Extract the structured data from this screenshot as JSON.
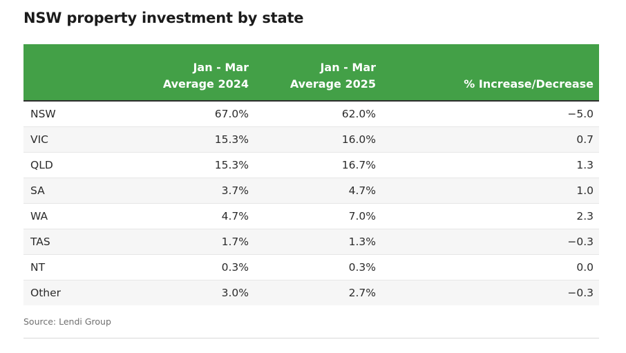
{
  "title": "NSW property investment by state",
  "source": "Source: Lendi Group",
  "chart_data": {
    "type": "table",
    "title": "NSW property investment by state",
    "columns": [
      {
        "name": "col-state",
        "lines": [
          ""
        ]
      },
      {
        "name": "col-2024",
        "lines": [
          "Jan - Mar",
          "Average 2024"
        ]
      },
      {
        "name": "col-2025",
        "lines": [
          "Jan - Mar",
          "Average 2025"
        ]
      },
      {
        "name": "col-change",
        "lines": [
          "% Increase/Decrease"
        ]
      }
    ],
    "rows": [
      [
        "NSW",
        "67.0%",
        "62.0%",
        "−5.0"
      ],
      [
        "VIC",
        "15.3%",
        "16.0%",
        "0.7"
      ],
      [
        "QLD",
        "15.3%",
        "16.7%",
        "1.3"
      ],
      [
        "SA",
        "3.7%",
        "4.7%",
        "1.0"
      ],
      [
        "WA",
        "4.7%",
        "7.0%",
        "2.3"
      ],
      [
        "TAS",
        "1.7%",
        "1.3%",
        "−0.3"
      ],
      [
        "NT",
        "0.3%",
        "0.3%",
        "0.0"
      ],
      [
        "Other",
        "3.0%",
        "2.7%",
        "−0.3"
      ]
    ],
    "source": "Source: Lendi Group"
  },
  "colors": {
    "header_bg": "#43a047",
    "header_text": "#ffffff",
    "stripe": "#f6f6f6"
  }
}
